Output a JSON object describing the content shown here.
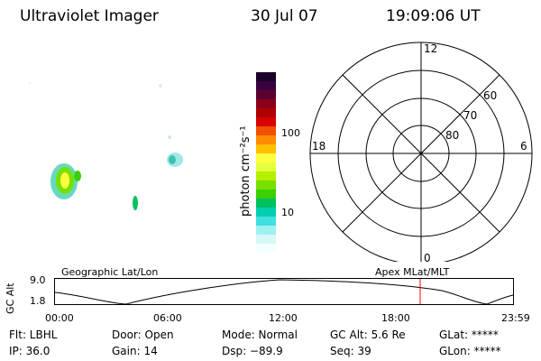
{
  "header": {
    "title": "Ultraviolet Imager",
    "date": "30 Jul 07",
    "time": "19:09:06 UT"
  },
  "colorbar": {
    "unit_label": "photon cm⁻²s⁻¹",
    "ticks": [
      "100",
      "10"
    ],
    "colors_top_to_bottom": [
      "#1a0028",
      "#3a0040",
      "#5a0030",
      "#8a0018",
      "#b00000",
      "#d80000",
      "#f05000",
      "#ff8c00",
      "#ffc000",
      "#ffff40",
      "#e6ff3c",
      "#b4f000",
      "#78e000",
      "#3cd000",
      "#00c060",
      "#00d0b0",
      "#40e0e0",
      "#a0f0f0",
      "#d8f8f8",
      "#f4ffff"
    ]
  },
  "polar_plot": {
    "mlt_labels": {
      "top": "12",
      "right": "6",
      "bottom": "0",
      "left": "18"
    },
    "lat_labels": [
      "60",
      "70",
      "80"
    ]
  },
  "orbit_plot": {
    "y_axis_label": "GC Alt",
    "y_ticks": [
      "9.0",
      "1.8"
    ],
    "left_title": "Geographic Lat/Lon",
    "right_title": "Apex MLat/MLT",
    "x_ticks": [
      "00:00",
      "06:00",
      "12:00",
      "18:00",
      "23:59"
    ],
    "marker_color": "#ff0000"
  },
  "info": {
    "row1": {
      "flt": "Flt: LBHL",
      "door": "Door: Open",
      "mode": "Mode: Normal",
      "gcalt": "GC Alt: 5.6 Re",
      "glat": "GLat: *****"
    },
    "row2": {
      "ip": "IP: 36.0",
      "gain": "Gain: 14",
      "dsp": "Dsp:  −89.9",
      "seq": "Seq: 39",
      "glon": "GLon: *****"
    }
  }
}
